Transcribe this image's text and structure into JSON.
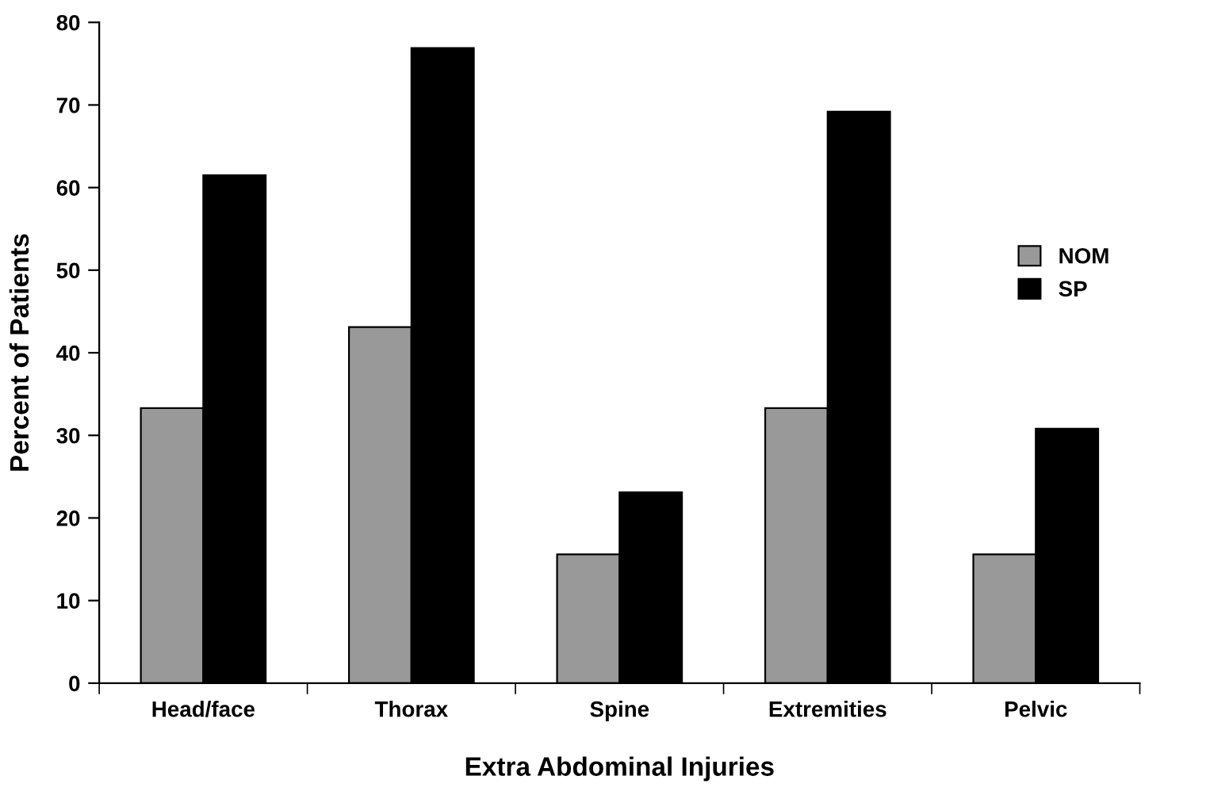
{
  "chart_data": {
    "type": "bar",
    "xlabel": "Extra Abdominal Injuries",
    "ylabel": "Percent of Patients",
    "categories": [
      "Head/face",
      "Thorax",
      "Spine",
      "Extremities",
      "Pelvic"
    ],
    "series": [
      {
        "name": "NOM",
        "color": "#999999",
        "values": [
          33.3,
          43.1,
          15.6,
          33.3,
          15.6
        ]
      },
      {
        "name": "SP",
        "color": "#000000",
        "values": [
          61.5,
          76.9,
          23.1,
          69.2,
          30.8
        ]
      }
    ],
    "ylim": [
      0,
      80
    ],
    "yticks": [
      0,
      10,
      20,
      30,
      40,
      50,
      60,
      70,
      80
    ],
    "grid": false,
    "legend": "right"
  }
}
